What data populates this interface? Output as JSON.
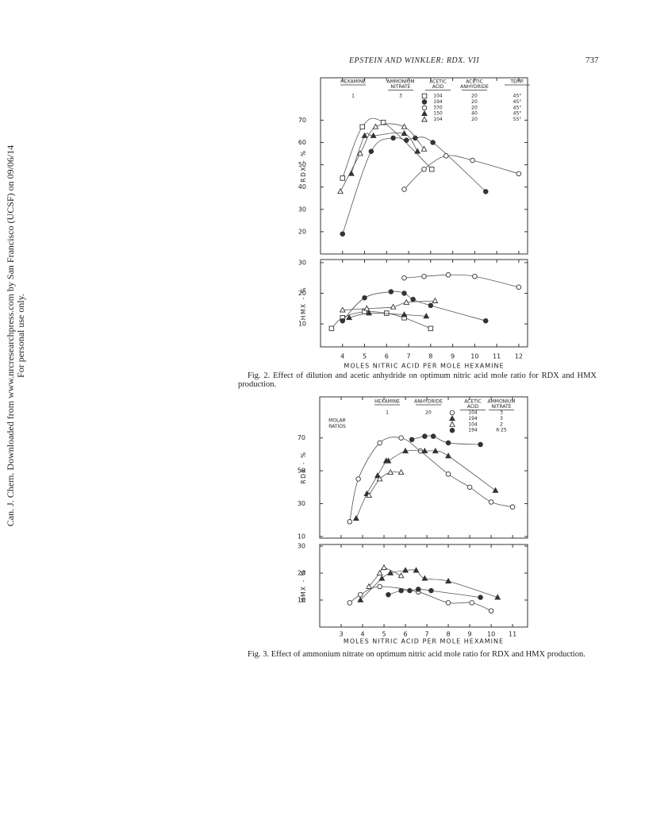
{
  "header": {
    "running_title": "EPSTEIN AND WINKLER: RDX. VII",
    "page": "737"
  },
  "side_note": [
    "Can. J. Chem. Downloaded from www.nrcresearchpress.com by San Francisco (UCSF) on 09/06/14",
    "For personal use only."
  ],
  "figures": [
    {
      "caption": "Fig. 2.  Effect of dilution and acetic anhydride on optimum nitric acid mole ratio for RDX and HMX production.",
      "legend": {
        "headers": [
          [
            "HEXAMINE"
          ],
          [
            "AMMONIUM",
            "NITRATE"
          ],
          [
            "ACETIC",
            "ACID"
          ],
          [
            "ACETIC",
            "ANHYDRIDE"
          ],
          [
            "TEMP."
          ]
        ],
        "constants": [
          "1",
          "3"
        ],
        "rows": [
          [
            "104",
            "20",
            "45°"
          ],
          [
            "194",
            "20",
            "45°"
          ],
          [
            "370",
            "20",
            "45°"
          ],
          [
            "150",
            "40",
            "45°"
          ],
          [
            "104",
            "20",
            "55°"
          ]
        ]
      }
    },
    {
      "caption": "Fig. 3.  Effect of ammonium nitrate on optimum nitric acid mole ratio for RDX and HMX production.",
      "legend": {
        "note": [
          "MOLAR",
          "RATIOS"
        ],
        "headers": [
          [
            "HEXAMINE"
          ],
          [
            "ANHYDRIDE"
          ],
          [
            "ACETIC",
            "ACID"
          ],
          [
            "AMMONIUM",
            "NITRATE"
          ]
        ],
        "constants": [
          "1",
          "20"
        ],
        "rows": [
          [
            "104",
            "3"
          ],
          [
            "194",
            "3"
          ],
          [
            "104",
            "2"
          ],
          [
            "194",
            "6·25"
          ]
        ]
      }
    }
  ],
  "chart_data": [
    {
      "type": "scatter",
      "figure": 0,
      "ylabel": "RDX - %",
      "xlim": [
        3,
        12.4
      ],
      "ylim": [
        10,
        89
      ],
      "xticks": [
        4,
        5,
        6,
        7,
        8,
        9,
        10,
        11,
        12
      ],
      "yticks": [
        20,
        30,
        40,
        50,
        60,
        70
      ],
      "series": [
        {
          "marker": "square-open",
          "x": [
            4,
            4.9,
            5.85,
            8.05
          ],
          "values": [
            44,
            67,
            69,
            48
          ]
        },
        {
          "marker": "circle-filled",
          "x": [
            4,
            5.3,
            6.3,
            6.9,
            7.3,
            8.1,
            10.5
          ],
          "values": [
            19,
            56,
            62,
            61,
            62,
            60,
            38
          ]
        },
        {
          "marker": "circle-open",
          "x": [
            6.8,
            7.7,
            8.7,
            9.9,
            12
          ],
          "values": [
            39,
            48,
            54,
            52,
            46
          ]
        },
        {
          "marker": "triangle-filled",
          "x": [
            4.4,
            5.0,
            5.4,
            6.8,
            7.4
          ],
          "values": [
            46,
            63,
            63,
            64,
            56
          ]
        },
        {
          "marker": "triangle-open",
          "x": [
            3.9,
            4.8,
            5.5,
            6.8,
            7.7
          ],
          "values": [
            38,
            55,
            67,
            67,
            57
          ]
        }
      ]
    },
    {
      "type": "scatter",
      "figure": 0,
      "ylabel": "HMX - %",
      "xlabel": "MOLES  NITRIC ACID  PER  MOLE  HEXAMINE",
      "xlim": [
        3,
        12.4
      ],
      "ylim": [
        2.5,
        31
      ],
      "xticks": [
        4,
        5,
        6,
        7,
        8,
        9,
        10,
        11,
        12
      ],
      "yticks": [
        10,
        20,
        30
      ],
      "series": [
        {
          "marker": "square-open",
          "x": [
            3.5,
            4,
            5,
            6,
            6.8,
            8
          ],
          "values": [
            8.5,
            12,
            14,
            13.5,
            12,
            8.5
          ]
        },
        {
          "marker": "circle-filled",
          "x": [
            4,
            5,
            6.2,
            6.8,
            7.2,
            8,
            10.5
          ],
          "values": [
            11,
            18.5,
            20.5,
            20,
            18,
            16,
            11
          ]
        },
        {
          "marker": "circle-open",
          "x": [
            6.8,
            7.7,
            8.8,
            10,
            12
          ],
          "values": [
            25,
            25.5,
            26,
            25.5,
            22
          ]
        },
        {
          "marker": "triangle-filled",
          "x": [
            4.3,
            5.2,
            6.8,
            7.8
          ],
          "values": [
            12,
            13.5,
            13,
            12.5
          ]
        },
        {
          "marker": "triangle-open",
          "x": [
            4,
            5.1,
            6.3,
            6.9,
            8.2
          ],
          "values": [
            14.5,
            15,
            15.5,
            17,
            17.5
          ]
        }
      ]
    },
    {
      "type": "scatter",
      "figure": 1,
      "ylabel": "RDX - %",
      "xlim": [
        2,
        11.7
      ],
      "ylim": [
        9,
        95
      ],
      "xticks": [
        3,
        4,
        5,
        6,
        7,
        8,
        9,
        10,
        11
      ],
      "yticks": [
        10,
        30,
        50,
        70
      ],
      "series": [
        {
          "marker": "circle-open",
          "x": [
            3.4,
            3.8,
            4.8,
            5.8,
            6.7,
            8,
            9,
            10,
            11
          ],
          "values": [
            19,
            45,
            67,
            70,
            62,
            48,
            40,
            31,
            28
          ]
        },
        {
          "marker": "triangle-filled",
          "x": [
            3.7,
            4.2,
            4.7,
            5.1,
            5.2,
            6,
            6.9,
            7.4,
            8,
            10.2
          ],
          "values": [
            21,
            36,
            47,
            56,
            56,
            62,
            62,
            62,
            59,
            38
          ]
        },
        {
          "marker": "triangle-open",
          "x": [
            4.3,
            4.8,
            5.3,
            5.8
          ],
          "values": [
            35,
            45,
            49,
            49
          ]
        },
        {
          "marker": "circle-filled",
          "x": [
            6.3,
            6.9,
            7.3,
            8,
            9.5
          ],
          "values": [
            69,
            71,
            71,
            67,
            66
          ]
        }
      ]
    },
    {
      "type": "scatter",
      "figure": 1,
      "ylabel": "HMX - %",
      "xlabel": "MOLES  NITRIC  ACID  PER  MOLE  HEXAMINE",
      "xlim": [
        2,
        11.7
      ],
      "ylim": [
        0,
        30.6
      ],
      "xticks": [
        3,
        4,
        5,
        6,
        7,
        8,
        9,
        10,
        11
      ],
      "yticks": [
        10,
        20,
        30
      ],
      "series": [
        {
          "marker": "circle-open",
          "x": [
            3.4,
            3.9,
            4.8,
            6.6,
            8,
            9.1,
            10
          ],
          "values": [
            9,
            12,
            15,
            13,
            9,
            9,
            6
          ]
        },
        {
          "marker": "triangle-filled",
          "x": [
            3.9,
            4.9,
            5.3,
            6,
            6.5,
            6.9,
            8,
            10.3
          ],
          "values": [
            10,
            18,
            20,
            21,
            21,
            18,
            17,
            11
          ]
        },
        {
          "marker": "triangle-open",
          "x": [
            4.3,
            4.8,
            5.0,
            5.8
          ],
          "values": [
            15,
            20,
            22,
            19
          ]
        },
        {
          "marker": "circle-filled",
          "x": [
            5.2,
            5.8,
            6.2,
            6.6,
            7.2,
            9.5
          ],
          "values": [
            12,
            13.5,
            13.5,
            14,
            13.5,
            11
          ]
        }
      ]
    }
  ]
}
